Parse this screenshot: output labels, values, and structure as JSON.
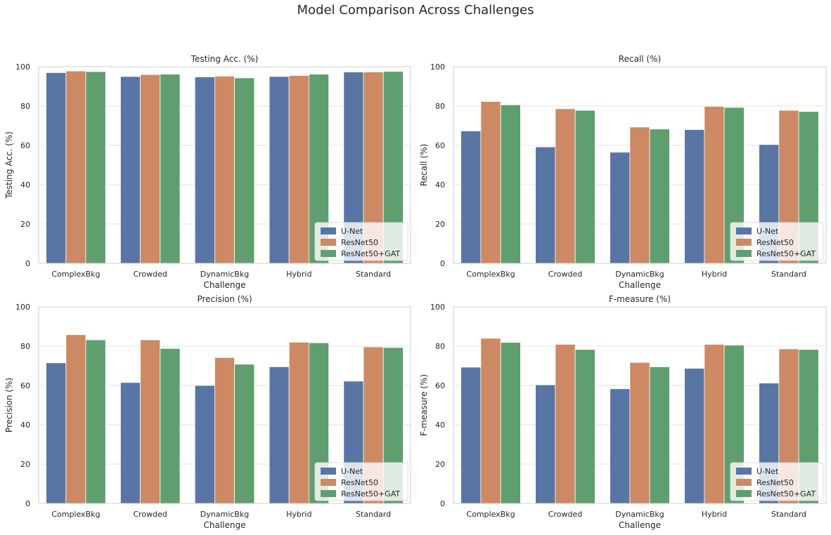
{
  "suptitle": "Model Comparison Across Challenges",
  "colors": {
    "U-Net": "#5875a4",
    "ResNet50": "#cc8963",
    "ResNet50+GAT": "#5f9e6e",
    "grid": "#e3e3e3",
    "frame": "#cfcfcf"
  },
  "chart_data": [
    {
      "type": "bar",
      "title": "Testing Acc. (%)",
      "xlabel": "Challenge",
      "ylabel": "Testing Acc. (%)",
      "ylim": [
        0,
        100
      ],
      "yticks": [
        0,
        20,
        40,
        60,
        80,
        100
      ],
      "grid": true,
      "legend": "lower-right",
      "categories": [
        "ComplexBkg",
        "Crowded",
        "DynamicBkg",
        "Hybrid",
        "Standard"
      ],
      "series": [
        {
          "name": "U-Net",
          "values": [
            97.0,
            95.0,
            94.8,
            95.0,
            97.3
          ]
        },
        {
          "name": "ResNet50",
          "values": [
            97.8,
            96.0,
            95.2,
            95.5,
            97.3
          ]
        },
        {
          "name": "ResNet50+GAT",
          "values": [
            97.5,
            96.2,
            94.3,
            96.2,
            97.6
          ]
        }
      ]
    },
    {
      "type": "bar",
      "title": "Recall (%)",
      "xlabel": "Challenge",
      "ylabel": "Recall (%)",
      "ylim": [
        0,
        100
      ],
      "yticks": [
        0,
        20,
        40,
        60,
        80,
        100
      ],
      "grid": true,
      "legend": "lower-right",
      "categories": [
        "ComplexBkg",
        "Crowded",
        "DynamicBkg",
        "Hybrid",
        "Standard"
      ],
      "series": [
        {
          "name": "U-Net",
          "values": [
            67.3,
            59.2,
            56.5,
            68.0,
            60.4
          ]
        },
        {
          "name": "ResNet50",
          "values": [
            82.3,
            78.6,
            69.3,
            79.8,
            77.8
          ]
        },
        {
          "name": "ResNet50+GAT",
          "values": [
            80.6,
            77.8,
            68.3,
            79.3,
            77.2
          ]
        }
      ]
    },
    {
      "type": "bar",
      "title": "Precision (%)",
      "xlabel": "Challenge",
      "ylabel": "Precision (%)",
      "ylim": [
        0,
        100
      ],
      "yticks": [
        0,
        20,
        40,
        60,
        80,
        100
      ],
      "grid": true,
      "legend": "lower-right",
      "categories": [
        "ComplexBkg",
        "Crowded",
        "DynamicBkg",
        "Hybrid",
        "Standard"
      ],
      "series": [
        {
          "name": "U-Net",
          "values": [
            71.5,
            61.5,
            60.0,
            69.5,
            62.2
          ]
        },
        {
          "name": "ResNet50",
          "values": [
            85.8,
            83.2,
            74.2,
            82.0,
            79.6
          ]
        },
        {
          "name": "ResNet50+GAT",
          "values": [
            83.2,
            78.8,
            70.8,
            81.7,
            79.3
          ]
        }
      ]
    },
    {
      "type": "bar",
      "title": "F-measure (%)",
      "xlabel": "Challenge",
      "ylabel": "F-measure (%)",
      "ylim": [
        0,
        100
      ],
      "yticks": [
        0,
        20,
        40,
        60,
        80,
        100
      ],
      "grid": true,
      "legend": "lower-right",
      "categories": [
        "ComplexBkg",
        "Crowded",
        "DynamicBkg",
        "Hybrid",
        "Standard"
      ],
      "series": [
        {
          "name": "U-Net",
          "values": [
            69.3,
            60.3,
            58.3,
            68.7,
            61.2
          ]
        },
        {
          "name": "ResNet50",
          "values": [
            84.0,
            80.9,
            71.7,
            80.9,
            78.6
          ]
        },
        {
          "name": "ResNet50+GAT",
          "values": [
            81.9,
            78.3,
            69.5,
            80.5,
            78.3
          ]
        }
      ]
    }
  ]
}
